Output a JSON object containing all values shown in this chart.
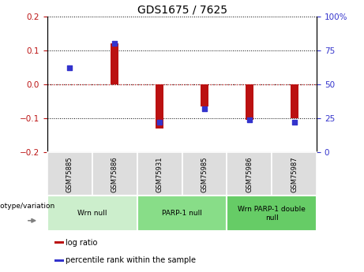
{
  "title": "GDS1675 / 7625",
  "samples": [
    "GSM75885",
    "GSM75886",
    "GSM75931",
    "GSM75985",
    "GSM75986",
    "GSM75987"
  ],
  "log_ratio": [
    0.0,
    0.12,
    -0.13,
    -0.065,
    -0.105,
    -0.1
  ],
  "percentile_rank": [
    62,
    80,
    22,
    32,
    24,
    22
  ],
  "ylim_left": [
    -0.2,
    0.2
  ],
  "ylim_right": [
    0,
    100
  ],
  "yticks_left": [
    -0.2,
    -0.1,
    0.0,
    0.1,
    0.2
  ],
  "yticks_right": [
    0,
    25,
    50,
    75,
    100
  ],
  "bar_color": "#BB1111",
  "dot_color": "#3333CC",
  "zero_line_color": "#CC3333",
  "group_defs": [
    {
      "label": "Wrn null",
      "start": 0,
      "end": 1,
      "color": "#CCEECC"
    },
    {
      "label": "PARP-1 null",
      "start": 2,
      "end": 3,
      "color": "#88DD88"
    },
    {
      "label": "Wrn PARP-1 double\nnull",
      "start": 4,
      "end": 5,
      "color": "#66CC66"
    }
  ],
  "legend_items": [
    {
      "label": "log ratio",
      "color": "#BB1111"
    },
    {
      "label": "percentile rank within the sample",
      "color": "#3333CC"
    }
  ],
  "genotype_label": "genotype/variation",
  "bar_width": 0.18
}
